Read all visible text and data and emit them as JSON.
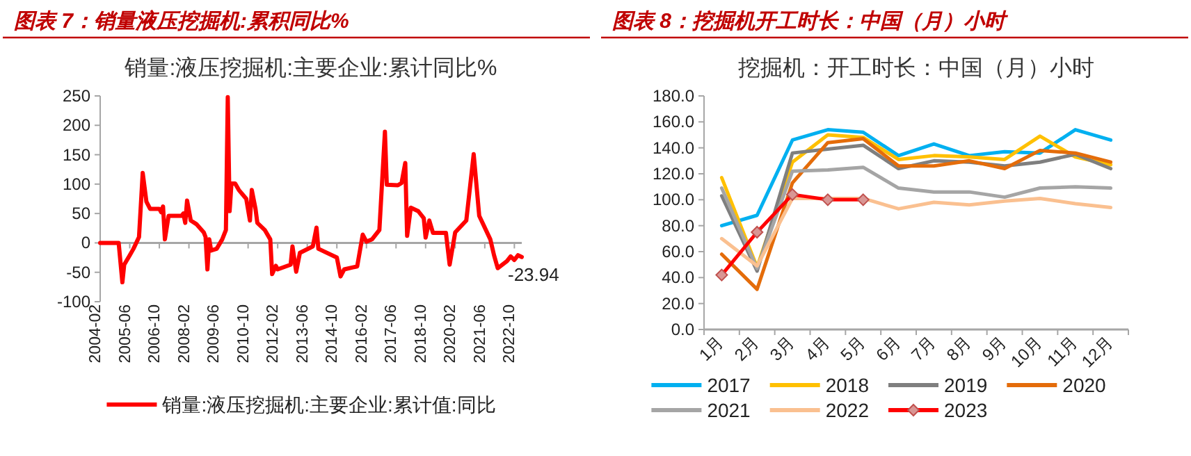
{
  "chart_data": [
    {
      "type": "line",
      "title": "图表 7：销量液压挖掘机:累积同比%",
      "subtitle": "销量:液压挖掘机:主要企业:累计同比%",
      "x": [
        "2004-02",
        "2004-12",
        "2005-02",
        "2005-03",
        "2005-06",
        "2005-08",
        "2005-11",
        "2006-01",
        "2006-03",
        "2006-05",
        "2006-10",
        "2006-11",
        "2006-12",
        "2007-01",
        "2007-03",
        "2007-10",
        "2007-11",
        "2007-12",
        "2008-01",
        "2008-03",
        "2008-06",
        "2008-10",
        "2008-11",
        "2008-12",
        "2009-01",
        "2009-02",
        "2009-05",
        "2009-08",
        "2009-10",
        "2009-11",
        "2009-12",
        "2010-01",
        "2010-03",
        "2010-05",
        "2010-09",
        "2010-11",
        "2010-12",
        "2011-02",
        "2011-03",
        "2011-07",
        "2011-10",
        "2011-11",
        "2012-01",
        "2012-02",
        "2012-09",
        "2012-10",
        "2012-12",
        "2013-02",
        "2013-09",
        "2013-11",
        "2013-12",
        "2014-10",
        "2014-12",
        "2015-02",
        "2015-09",
        "2015-12",
        "2016-02",
        "2016-05",
        "2016-09",
        "2016-12",
        "2017-01",
        "2017-07",
        "2017-09",
        "2017-11",
        "2017-12",
        "2018-02",
        "2018-06",
        "2018-09",
        "2018-10",
        "2018-12",
        "2019-02",
        "2019-09",
        "2019-11",
        "2020-02",
        "2020-08",
        "2020-12",
        "2021-03",
        "2021-09",
        "2021-11",
        "2022-01",
        "2022-06",
        "2022-08",
        "2022-10",
        "2022-12",
        "2023-02"
      ],
      "series": [
        {
          "name": "销量:液压挖掘机:主要企业:累计值:同比",
          "color": "#ff0000",
          "values": [
            0,
            0,
            -67,
            -37,
            -21,
            -10,
            10,
            119,
            70,
            58,
            58,
            52,
            62,
            6,
            46,
            46,
            50,
            34,
            72,
            38,
            32,
            18,
            10,
            -45,
            6,
            -13,
            -10,
            6,
            22,
            248,
            54,
            101,
            101,
            90,
            75,
            38,
            90,
            58,
            34,
            22,
            6,
            -53,
            -39,
            -45,
            -37,
            -6,
            -49,
            -17,
            -6,
            26,
            -10,
            -25,
            -57,
            -45,
            -40,
            14,
            2,
            6,
            22,
            189,
            99,
            98,
            102,
            136,
            12,
            60,
            54,
            42,
            9,
            38,
            17,
            17,
            -37,
            18,
            38,
            151,
            46,
            6,
            -21,
            -43,
            -31,
            -23,
            -29,
            -21,
            -23.94
          ]
        }
      ],
      "xlim": [
        "2004-02",
        "2023-02"
      ],
      "xticks": [
        "2004-02",
        "2005-06",
        "2006-10",
        "2008-02",
        "2009-06",
        "2010-10",
        "2012-02",
        "2013-06",
        "2014-10",
        "2016-02",
        "2017-06",
        "2018-10",
        "2020-02",
        "2021-06",
        "2022-10"
      ],
      "ylim": [
        -100,
        250
      ],
      "yticks": [
        -100,
        -50,
        0,
        50,
        100,
        150,
        200,
        250
      ],
      "legend": "bottom",
      "annotations": [
        {
          "text": "-23.94",
          "x": "2023-02",
          "y": -23.94
        }
      ]
    },
    {
      "type": "line",
      "title": "图表 8：挖掘机开工时长：中国（月）小时",
      "subtitle": "挖掘机：开工时长：中国（月）小时",
      "categories": [
        "1月",
        "2月",
        "3月",
        "4月",
        "5月",
        "6月",
        "7月",
        "8月",
        "9月",
        "10月",
        "11月",
        "12月"
      ],
      "series": [
        {
          "name": "2017",
          "color": "#00b0f0",
          "values": [
            80,
            88,
            146,
            154,
            152,
            134,
            143,
            134,
            137,
            136,
            154,
            146
          ]
        },
        {
          "name": "2018",
          "color": "#ffc000",
          "values": [
            117,
            48,
            129,
            150,
            148,
            131,
            134,
            133,
            131,
            149,
            133,
            127
          ]
        },
        {
          "name": "2019",
          "color": "#7f7f7f",
          "values": [
            103,
            45,
            136,
            139,
            142,
            124,
            130,
            129,
            126,
            129,
            135,
            124
          ]
        },
        {
          "name": "2020",
          "color": "#e46c0a",
          "values": [
            58,
            31,
            113,
            144,
            147,
            126,
            126,
            130,
            124,
            138,
            136,
            129
          ]
        },
        {
          "name": "2021",
          "color": "#a5a5a5",
          "values": [
            109,
            47,
            122,
            123,
            125,
            109,
            106,
            106,
            102,
            109,
            110,
            109
          ]
        },
        {
          "name": "2022",
          "color": "#fac090",
          "values": [
            70,
            49,
            101,
            101,
            101,
            93,
            98,
            96,
            99,
            101,
            97,
            94
          ]
        },
        {
          "name": "2023",
          "color": "#ff0000",
          "marker": "diamond",
          "values": [
            42,
            75,
            104,
            100,
            100,
            null,
            null,
            null,
            null,
            null,
            null,
            null
          ]
        }
      ],
      "ylim": [
        0,
        180
      ],
      "yticks": [
        {
          "value": 0,
          "label": "0.0"
        },
        {
          "value": 20,
          "label": "20.0"
        },
        {
          "value": 40,
          "label": "40.0"
        },
        {
          "value": 60,
          "label": "60.0"
        },
        {
          "value": 80,
          "label": "80.0"
        },
        {
          "value": 100,
          "label": "100.0"
        },
        {
          "value": 120,
          "label": "120.0"
        },
        {
          "value": 140,
          "label": "140.0"
        },
        {
          "value": 160,
          "label": "160.0"
        },
        {
          "value": 180,
          "label": "180.0"
        }
      ],
      "legend": "bottom"
    }
  ]
}
